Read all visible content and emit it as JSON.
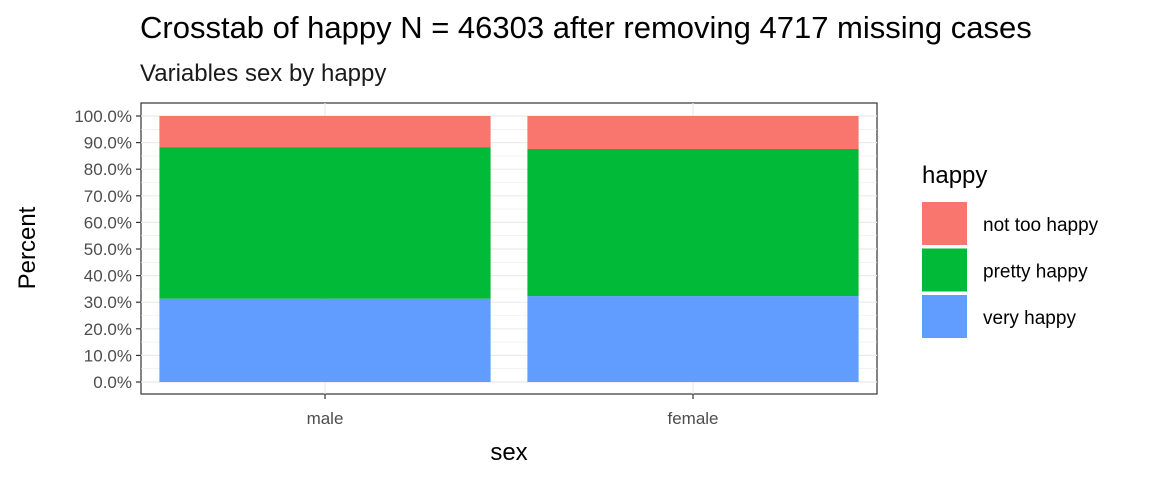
{
  "chart_data": {
    "type": "bar",
    "stacked": true,
    "title": "Crosstab of happy N = 46303 after removing 4717 missing cases",
    "subtitle": "Variables sex by happy",
    "xlabel": "sex",
    "ylabel": "Percent",
    "categories": [
      "male",
      "female"
    ],
    "series": [
      {
        "name": "very happy",
        "values": [
          31.3,
          32.3
        ],
        "color": "#619CFF"
      },
      {
        "name": "pretty happy",
        "values": [
          57.0,
          55.3
        ],
        "color": "#00BA38"
      },
      {
        "name": "not too happy",
        "values": [
          11.7,
          12.4
        ],
        "color": "#F8766D"
      }
    ],
    "ylim": [
      0,
      100
    ],
    "yticks": [
      "0.0%",
      "10.0%",
      "20.0%",
      "30.0%",
      "40.0%",
      "50.0%",
      "60.0%",
      "70.0%",
      "80.0%",
      "90.0%",
      "100.0%"
    ],
    "legend": {
      "title": "happy",
      "entries": [
        "not too happy",
        "pretty happy",
        "very happy"
      ],
      "placement": "right"
    },
    "grid": true
  }
}
